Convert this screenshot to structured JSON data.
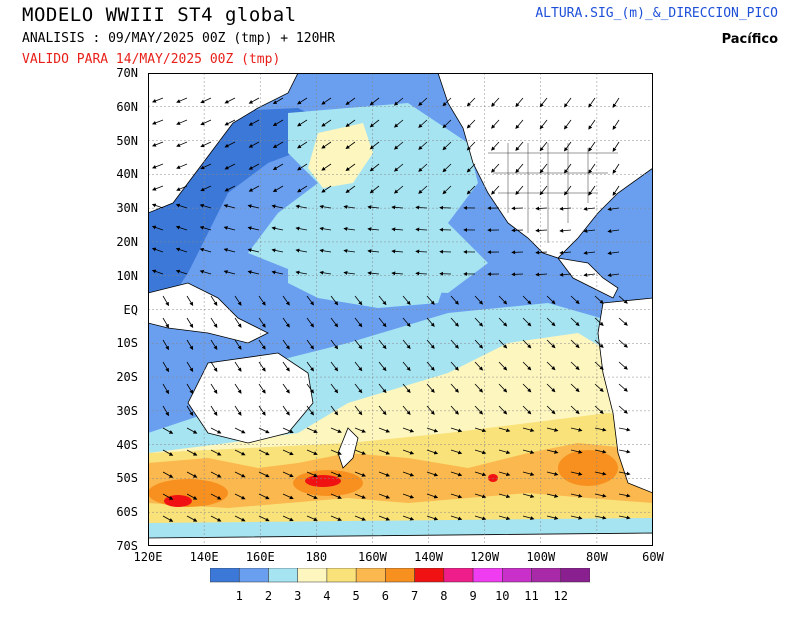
{
  "header": {
    "title": "MODELO WWIII ST4 global",
    "analysis": "ANALISIS : 09/MAY/2025 00Z  (tmp) + 120HR",
    "valid": "VALIDO PARA  14/MAY/2025 00Z  (tmp)",
    "parameter": "ALTURA.SIG_(m)_&_DIRECCION_PICO",
    "region": "Pacífico"
  },
  "map": {
    "lat_labels": [
      "70N",
      "60N",
      "50N",
      "40N",
      "30N",
      "20N",
      "10N",
      "EQ",
      "10S",
      "20S",
      "30S",
      "40S",
      "50S",
      "60S",
      "70S"
    ],
    "lon_labels": [
      "120E",
      "140E",
      "160E",
      "180",
      "160W",
      "140W",
      "120W",
      "100W",
      "80W",
      "60W"
    ],
    "lat_range": [
      -70,
      70
    ],
    "lon_range": [
      120,
      300
    ]
  },
  "legend": {
    "values": [
      "1",
      "2",
      "3",
      "4",
      "5",
      "6",
      "7",
      "8",
      "9",
      "10",
      "11",
      "12"
    ],
    "colors": [
      "#3c78d8",
      "#6a9ff0",
      "#a6e4f2",
      "#fdf6bf",
      "#f9e27a",
      "#fbb84e",
      "#f7901f",
      "#f01212",
      "#ef1d8a",
      "#f03cf0",
      "#c92fc9",
      "#a82aa8",
      "#8a1f8f"
    ]
  }
}
